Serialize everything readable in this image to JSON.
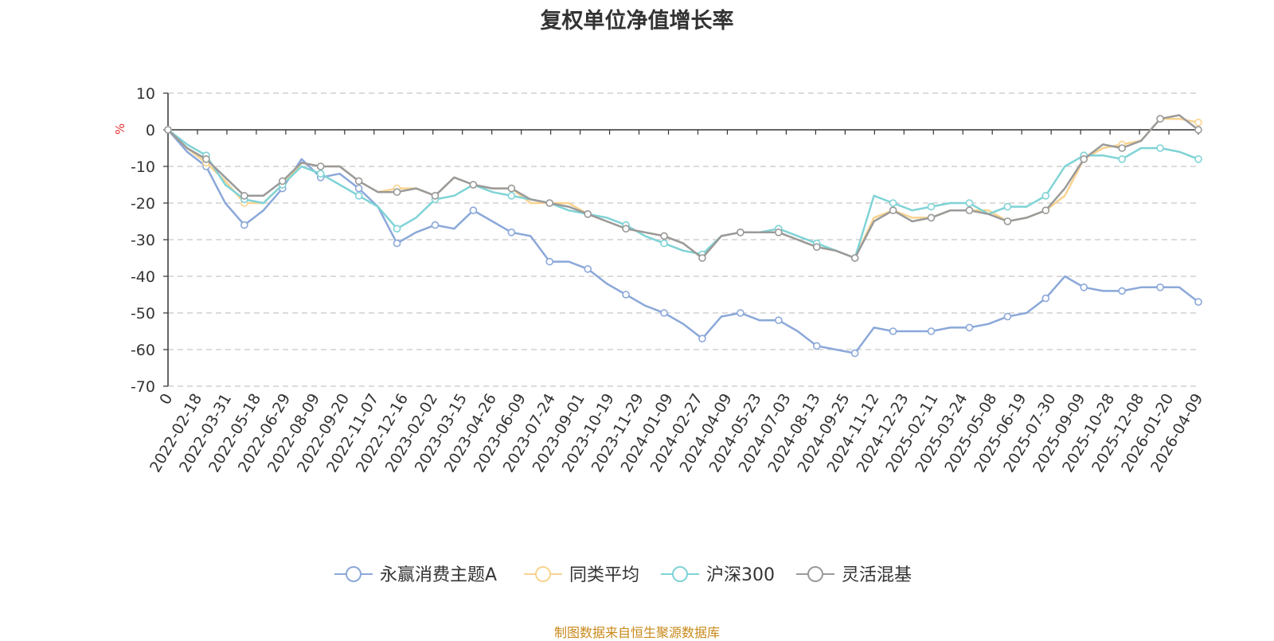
{
  "chart_data": {
    "type": "line",
    "title": "复权单位净值增长率",
    "ylabel": "%",
    "ylim": [
      -70,
      10
    ],
    "yticks": [
      10,
      0,
      -10,
      -20,
      -30,
      -40,
      -50,
      -60,
      -70
    ],
    "x_labels": [
      "0",
      "2022-02-18",
      "2022-03-31",
      "2022-05-18",
      "2022-06-29",
      "2022-08-09",
      "2022-09-20",
      "2022-11-07",
      "2022-12-16",
      "2023-02-02",
      "2023-03-15",
      "2023-04-26",
      "2023-06-09",
      "2023-07-24",
      "2023-09-01",
      "2023-10-19",
      "2023-11-29",
      "2024-01-09",
      "2024-02-27",
      "2024-04-09",
      "2024-05-23",
      "2024-07-03",
      "2024-08-13",
      "2024-09-25",
      "2024-11-12",
      "2024-12-23",
      "2025-02-11",
      "2025-03-24",
      "2025-05-08",
      "2025-06-19",
      "2025-07-30",
      "2025-09-09",
      "2025-10-28",
      "2025-12-08",
      "2026-01-20",
      "2026-04-09"
    ],
    "grid": true,
    "legend_position": "bottom",
    "series": [
      {
        "name": "永赢消费主题A",
        "color": "#8ba8d9",
        "values": [
          0,
          -6,
          -10,
          -20,
          -26,
          -22,
          -16,
          -8,
          -13,
          -12,
          -16,
          -21,
          -31,
          -28,
          -26,
          -27,
          -22,
          -25,
          -28,
          -29,
          -36,
          -36,
          -38,
          -42,
          -45,
          -48,
          -50,
          -53,
          -57,
          -51,
          -50,
          -52,
          -52,
          -55,
          -59,
          -60,
          -61,
          -54,
          -55,
          -55,
          -55,
          -54,
          -54,
          -53,
          -51,
          -50,
          -46,
          -40,
          -43,
          -44,
          -44,
          -43,
          -43,
          -43,
          -47
        ]
      },
      {
        "name": "同类平均",
        "color": "#f9d38f",
        "values": [
          0,
          -5,
          -9,
          -14,
          -20,
          -20,
          -15,
          -9,
          -10,
          -10,
          -14,
          -17,
          -16,
          -16,
          -18,
          -13,
          -15,
          -16,
          -16,
          -20,
          -20,
          -20,
          -23,
          -25,
          -27,
          -28,
          -29,
          -31,
          -35,
          -29,
          -28,
          -28,
          -28,
          -30,
          -32,
          -33,
          -35,
          -24,
          -22,
          -24,
          -24,
          -22,
          -22,
          -22,
          -25,
          -24,
          -22,
          -18,
          -8,
          -5,
          -4,
          -3,
          3,
          3,
          2
        ]
      },
      {
        "name": "沪深300",
        "color": "#7fd3d6",
        "values": [
          0,
          -4,
          -7,
          -15,
          -19,
          -20,
          -15,
          -10,
          -12,
          -15,
          -18,
          -21,
          -27,
          -24,
          -19,
          -18,
          -15,
          -17,
          -18,
          -19,
          -20,
          -22,
          -23,
          -24,
          -26,
          -29,
          -31,
          -33,
          -34,
          -29,
          -28,
          -28,
          -27,
          -29,
          -31,
          -33,
          -35,
          -18,
          -20,
          -22,
          -21,
          -20,
          -20,
          -23,
          -21,
          -21,
          -18,
          -10,
          -7,
          -7,
          -8,
          -5,
          -5,
          -6,
          -8
        ]
      },
      {
        "name": "灵活混基",
        "color": "#9a9a9a",
        "values": [
          0,
          -5,
          -8,
          -13,
          -18,
          -18,
          -14,
          -9,
          -10,
          -10,
          -14,
          -17,
          -17,
          -16,
          -18,
          -13,
          -15,
          -16,
          -16,
          -19,
          -20,
          -21,
          -23,
          -25,
          -27,
          -28,
          -29,
          -31,
          -35,
          -29,
          -28,
          -28,
          -28,
          -30,
          -32,
          -33,
          -35,
          -25,
          -22,
          -25,
          -24,
          -22,
          -22,
          -23,
          -25,
          -24,
          -22,
          -16,
          -8,
          -4,
          -5,
          -3,
          3,
          4,
          0
        ]
      }
    ]
  },
  "source_text": "制图数据来自恒生聚源数据库"
}
